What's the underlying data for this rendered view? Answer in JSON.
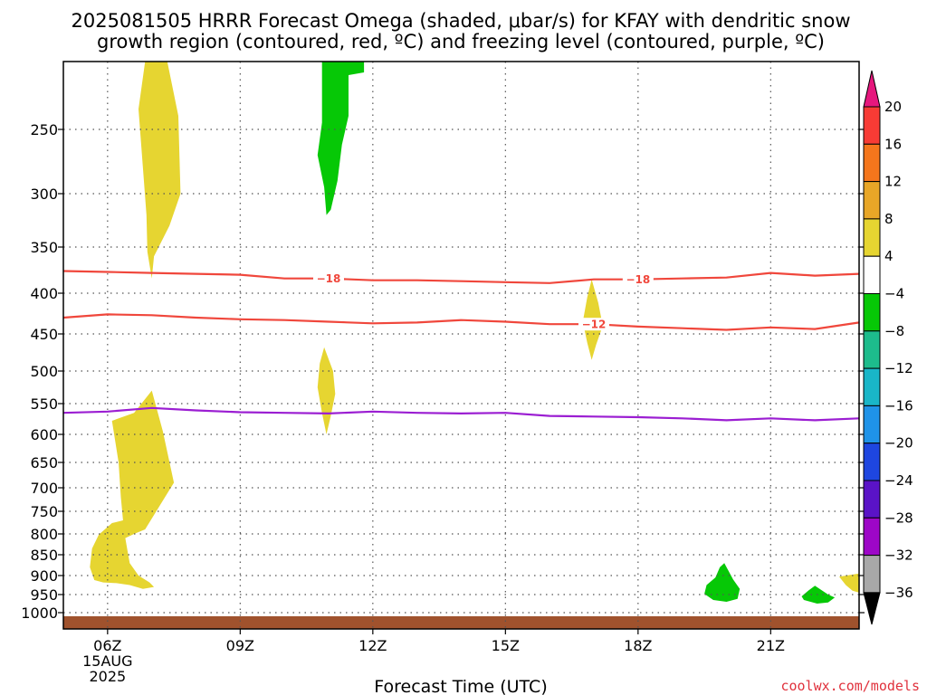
{
  "chart_data": {
    "type": "contour",
    "title_line1": "2025081505 HRRR Forecast Omega (shaded, μbar/s) for KFAY with dendritic snow",
    "title_line2": "growth region (contoured, red, ºC) and freezing level (contoured, purple, ºC)",
    "xlabel": "Forecast Time (UTC)",
    "credit": "coolwx.com/models",
    "x_ticks": [
      {
        "hour": 6,
        "label": "06Z",
        "sub1": "15AUG",
        "sub2": "2025"
      },
      {
        "hour": 9,
        "label": "09Z"
      },
      {
        "hour": 12,
        "label": "12Z"
      },
      {
        "hour": 15,
        "label": "15Z"
      },
      {
        "hour": 18,
        "label": "18Z"
      },
      {
        "hour": 21,
        "label": "21Z"
      }
    ],
    "xlim": [
      5,
      23
    ],
    "ylim": [
      200,
      1030
    ],
    "y_ticks": [
      250,
      300,
      350,
      400,
      450,
      500,
      550,
      600,
      650,
      700,
      750,
      800,
      850,
      900,
      950,
      1000
    ],
    "grid": true,
    "colorbar": {
      "labels": [
        "20",
        "16",
        "12",
        "8",
        "4",
        "−4",
        "−8",
        "−12",
        "−16",
        "−20",
        "−24",
        "−28",
        "−32",
        "−36"
      ],
      "colors": [
        "#f73b35",
        "#f5761c",
        "#e8a627",
        "#e6d531",
        "#ffffff",
        "#06c806",
        "#1dbc8c",
        "#19b6c8",
        "#1f93e8",
        "#1e46e0",
        "#5a13c7",
        "#9d06c7",
        "#a8a8a8"
      ],
      "top_arrow_color": "#e6177d",
      "bottom_arrow_color": "#000000"
    },
    "contours": [
      {
        "name": "-18",
        "color": "#f0473c",
        "label_positions": [
          11,
          18
        ],
        "points": [
          [
            5,
            376
          ],
          [
            6,
            377
          ],
          [
            7,
            378
          ],
          [
            8,
            379
          ],
          [
            9,
            380
          ],
          [
            10,
            384
          ],
          [
            11,
            384
          ],
          [
            12,
            386
          ],
          [
            13,
            386
          ],
          [
            14,
            387
          ],
          [
            15,
            388
          ],
          [
            16,
            389
          ],
          [
            17,
            385
          ],
          [
            18,
            385
          ],
          [
            19,
            384
          ],
          [
            20,
            383
          ],
          [
            21,
            378
          ],
          [
            22,
            381
          ],
          [
            23,
            379
          ]
        ]
      },
      {
        "name": "-12",
        "color": "#f0473c",
        "label_positions": [
          17
        ],
        "points": [
          [
            5,
            430
          ],
          [
            6,
            426
          ],
          [
            7,
            427
          ],
          [
            8,
            430
          ],
          [
            9,
            432
          ],
          [
            10,
            433
          ],
          [
            11,
            435
          ],
          [
            12,
            437
          ],
          [
            13,
            436
          ],
          [
            14,
            433
          ],
          [
            15,
            435
          ],
          [
            16,
            438
          ],
          [
            17,
            438
          ],
          [
            18,
            441
          ],
          [
            19,
            443
          ],
          [
            20,
            445
          ],
          [
            21,
            442
          ],
          [
            22,
            444
          ],
          [
            23,
            436
          ]
        ]
      },
      {
        "name": "freezing",
        "color": "#9b1ed2",
        "label_positions": [],
        "points": [
          [
            5,
            565
          ],
          [
            6,
            563
          ],
          [
            7,
            557
          ],
          [
            8,
            561
          ],
          [
            9,
            564
          ],
          [
            10,
            565
          ],
          [
            11,
            566
          ],
          [
            12,
            563
          ],
          [
            13,
            565
          ],
          [
            14,
            566
          ],
          [
            15,
            565
          ],
          [
            16,
            570
          ],
          [
            17,
            571
          ],
          [
            18,
            572
          ],
          [
            19,
            574
          ],
          [
            20,
            577
          ],
          [
            21,
            574
          ],
          [
            22,
            577
          ],
          [
            23,
            574
          ]
        ]
      }
    ],
    "omega_regions": [
      {
        "value": 4,
        "color": "#e6d531",
        "points": [
          [
            6.85,
            200
          ],
          [
            7.35,
            200
          ],
          [
            7.6,
            240
          ],
          [
            7.65,
            300
          ],
          [
            7.4,
            330
          ],
          [
            7.05,
            360
          ],
          [
            7.0,
            384
          ],
          [
            6.9,
            355
          ],
          [
            6.88,
            320
          ],
          [
            6.8,
            280
          ],
          [
            6.7,
            235
          ]
        ]
      },
      {
        "value": 4,
        "color": "#e6d531",
        "points": [
          [
            6.1,
            578
          ],
          [
            6.6,
            565
          ],
          [
            7.0,
            530
          ],
          [
            7.25,
            595
          ],
          [
            7.5,
            690
          ],
          [
            7.2,
            735
          ],
          [
            6.85,
            790
          ],
          [
            6.6,
            800
          ],
          [
            6.4,
            810
          ],
          [
            6.45,
            840
          ],
          [
            6.5,
            870
          ],
          [
            6.7,
            900
          ],
          [
            6.95,
            918
          ],
          [
            7.05,
            930
          ],
          [
            6.8,
            935
          ],
          [
            6.5,
            925
          ],
          [
            6.2,
            920
          ],
          [
            5.9,
            918
          ],
          [
            5.7,
            912
          ],
          [
            5.6,
            880
          ],
          [
            5.65,
            835
          ],
          [
            5.8,
            802
          ],
          [
            6.1,
            776
          ],
          [
            6.35,
            770
          ],
          [
            6.3,
            720
          ],
          [
            6.25,
            650
          ]
        ]
      },
      {
        "value": -4,
        "color": "#06c806",
        "points": [
          [
            10.85,
            200
          ],
          [
            11.8,
            200
          ],
          [
            11.8,
            208
          ],
          [
            11.45,
            210
          ],
          [
            11.45,
            240
          ],
          [
            11.3,
            262
          ],
          [
            11.2,
            290
          ],
          [
            11.05,
            315
          ],
          [
            10.95,
            320
          ],
          [
            10.9,
            295
          ],
          [
            10.75,
            270
          ],
          [
            10.85,
            245
          ],
          [
            10.85,
            215
          ]
        ]
      },
      {
        "value": 4,
        "color": "#e6d531",
        "points": [
          [
            10.9,
            468
          ],
          [
            11.1,
            500
          ],
          [
            11.15,
            535
          ],
          [
            11.05,
            570
          ],
          [
            10.95,
            600
          ],
          [
            10.85,
            565
          ],
          [
            10.75,
            525
          ],
          [
            10.8,
            490
          ]
        ]
      },
      {
        "value": 4,
        "color": "#e6d531",
        "points": [
          [
            16.95,
            385
          ],
          [
            17.1,
            412
          ],
          [
            17.2,
            440
          ],
          [
            17.05,
            465
          ],
          [
            16.95,
            485
          ],
          [
            16.85,
            462
          ],
          [
            16.75,
            435
          ],
          [
            16.85,
            405
          ]
        ]
      },
      {
        "value": -4,
        "color": "#06c806",
        "points": [
          [
            19.95,
            870
          ],
          [
            20.15,
            910
          ],
          [
            20.3,
            935
          ],
          [
            20.25,
            962
          ],
          [
            20.0,
            970
          ],
          [
            19.7,
            965
          ],
          [
            19.5,
            948
          ],
          [
            19.55,
            925
          ],
          [
            19.75,
            905
          ],
          [
            19.85,
            880
          ]
        ]
      },
      {
        "value": -4,
        "color": "#06c806",
        "points": [
          [
            22.0,
            927
          ],
          [
            22.3,
            950
          ],
          [
            22.45,
            958
          ],
          [
            22.3,
            972
          ],
          [
            22.05,
            975
          ],
          [
            21.75,
            965
          ],
          [
            21.7,
            955
          ],
          [
            21.85,
            940
          ]
        ]
      },
      {
        "value": 4,
        "color": "#e6d531",
        "points": [
          [
            22.55,
            903
          ],
          [
            23.0,
            895
          ],
          [
            23.0,
            945
          ],
          [
            22.85,
            940
          ],
          [
            22.7,
            925
          ]
        ]
      }
    ],
    "terrain_color": "#a0522d"
  }
}
